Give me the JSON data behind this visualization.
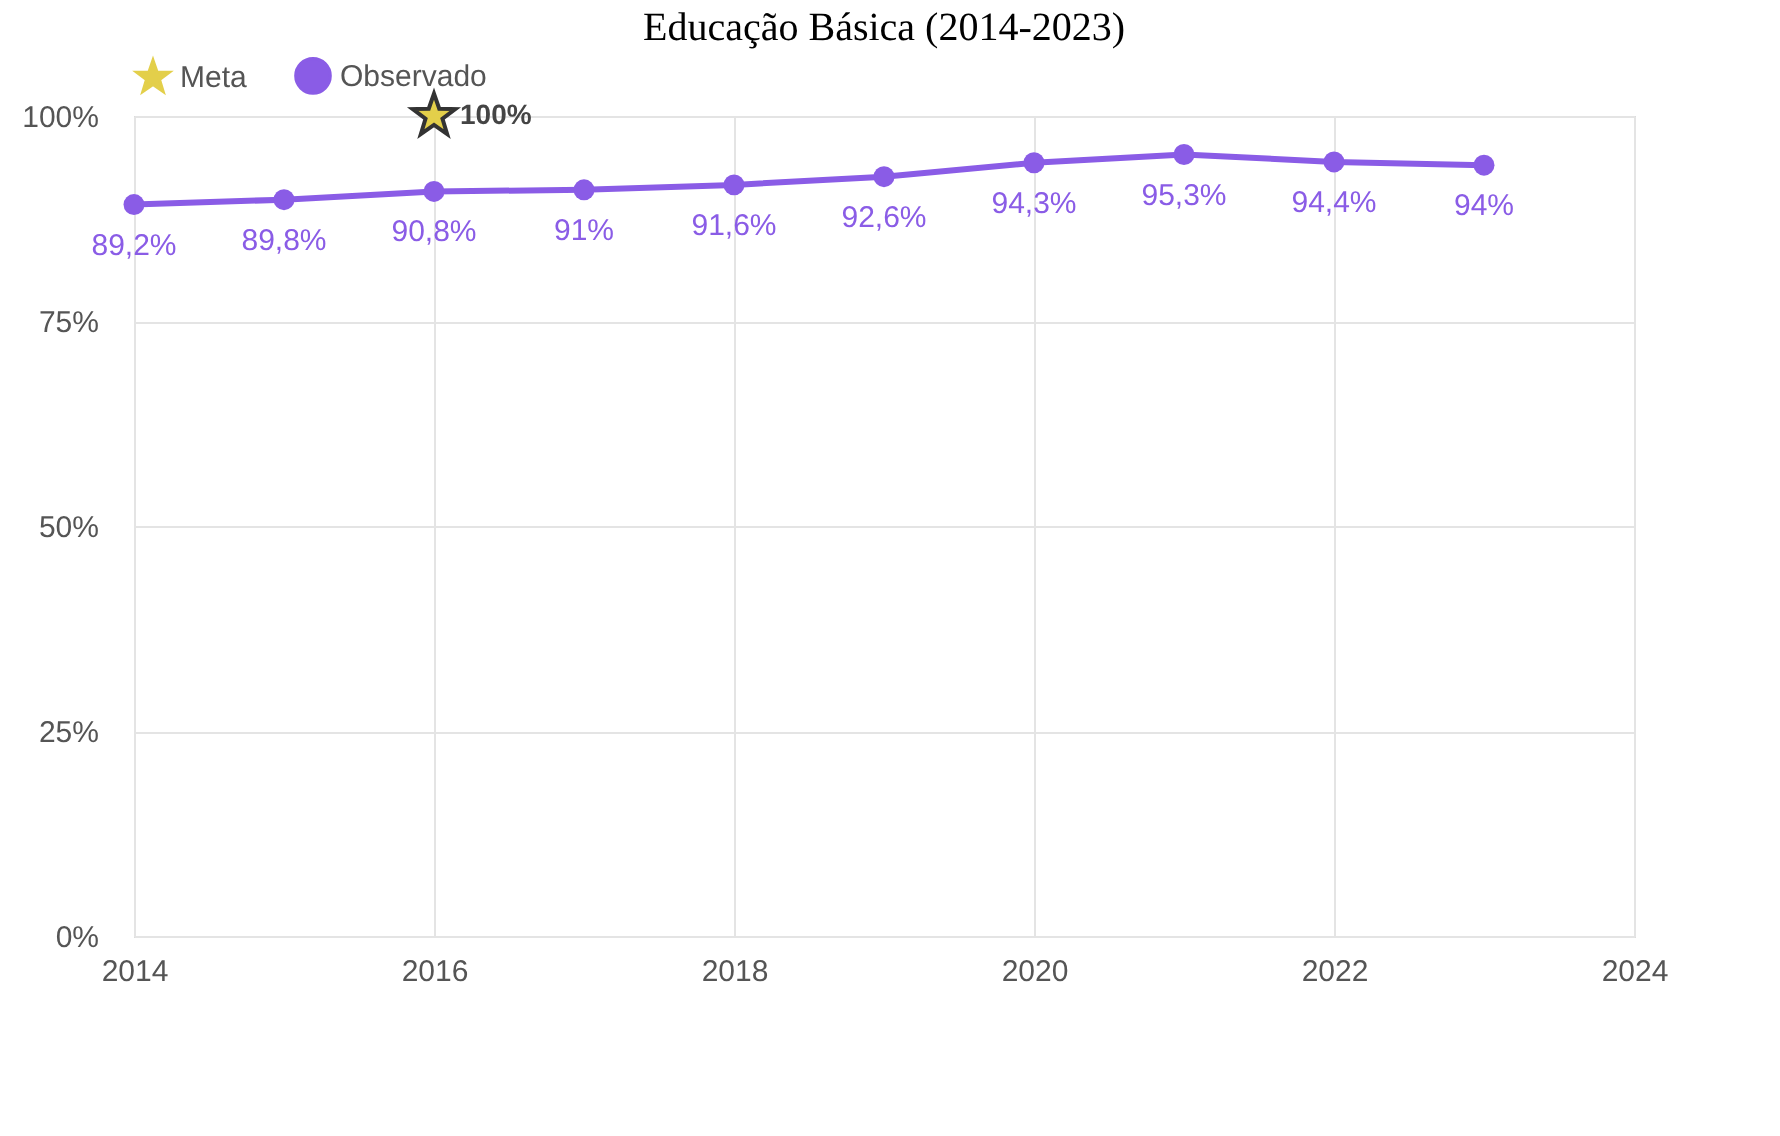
{
  "chart_data": {
    "type": "line",
    "title": "Educação Básica (2014-2023)",
    "x": [
      2014,
      2015,
      2016,
      2017,
      2018,
      2019,
      2020,
      2021,
      2022,
      2023
    ],
    "series": [
      {
        "name": "Meta",
        "type": "scatter",
        "marker": "star",
        "color": "#e3cf4a",
        "x": [
          2016
        ],
        "values": [
          100
        ],
        "value_labels": [
          "100%"
        ]
      },
      {
        "name": "Observado",
        "marker": "circle",
        "color": "#8a5ce6",
        "values": [
          89.2,
          89.8,
          90.8,
          91,
          91.6,
          92.6,
          94.3,
          95.3,
          94.4,
          94
        ],
        "value_labels": [
          "89,2%",
          "89,8%",
          "90,8%",
          "91%",
          "91,6%",
          "92,6%",
          "94,3%",
          "95,3%",
          "94,4%",
          "94%"
        ]
      }
    ],
    "xlim": [
      2014,
      2024
    ],
    "xticks": [
      2014,
      2016,
      2018,
      2020,
      2022,
      2024
    ],
    "ylim": [
      0,
      100
    ],
    "yticks": [
      {
        "value": 0,
        "label": "0%"
      },
      {
        "value": 25,
        "label": "25%"
      },
      {
        "value": 50,
        "label": "50%"
      },
      {
        "value": 75,
        "label": "75%"
      },
      {
        "value": 100,
        "label": "100%"
      }
    ],
    "grid": true,
    "legend": "top"
  }
}
